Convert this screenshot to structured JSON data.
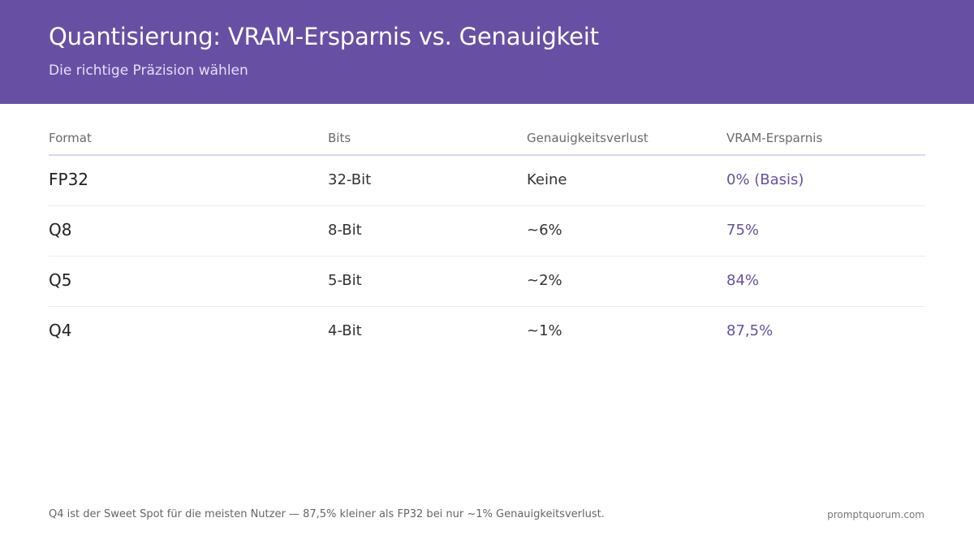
{
  "header": {
    "title": "Quantisierung: VRAM-Ersparnis vs. Genauigkeit",
    "subtitle": "Die richtige Präzision wählen"
  },
  "table": {
    "columns": [
      "Format",
      "Bits",
      "Genauigkeitsverlust",
      "VRAM-Ersparnis"
    ],
    "rows": [
      {
        "format": "FP32",
        "bits": "32-Bit",
        "loss": "Keine",
        "saving": "0% (Basis)"
      },
      {
        "format": "Q8",
        "bits": "8-Bit",
        "loss": "~6%",
        "saving": "75%"
      },
      {
        "format": "Q5",
        "bits": "5-Bit",
        "loss": "~2%",
        "saving": "84%"
      },
      {
        "format": "Q4",
        "bits": "4-Bit",
        "loss": "~1%",
        "saving": "87,5%"
      }
    ]
  },
  "footer": {
    "note": "Q4 ist der Sweet Spot für die meisten Nutzer — 87,5% kleiner als FP32 bei nur ~1% Genauigkeitsverlust.",
    "brand": "promptquorum.com"
  },
  "colors": {
    "header_bg": "#6750a4",
    "accent": "#6750a4"
  }
}
